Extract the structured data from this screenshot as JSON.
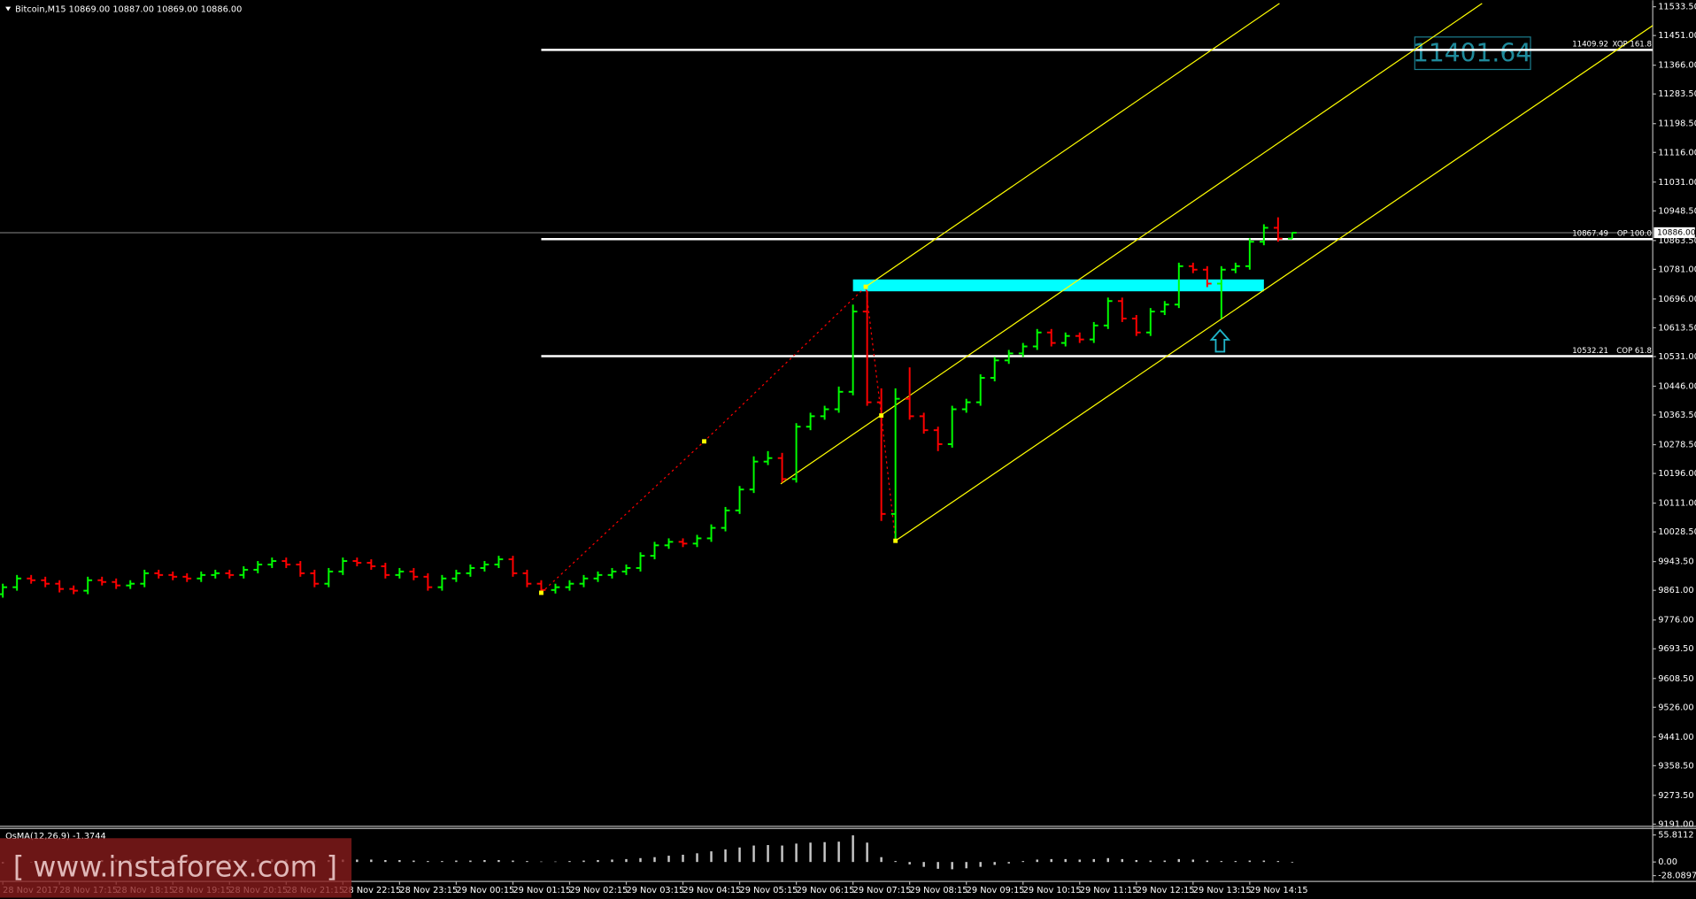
{
  "chart_data": {
    "type": "ohlc",
    "title": "Bitcoin,M15  10869.00 10887.00 10869.00 10886.00",
    "categories": [
      "28 Nov 2017",
      null,
      null,
      null,
      "28 Nov 17:15",
      null,
      null,
      null,
      "28 Nov 18:15",
      null,
      null,
      null,
      "28 Nov 19:15",
      null,
      null,
      null,
      "28 Nov 20:15",
      null,
      null,
      null,
      "28 Nov 21:15",
      null,
      null,
      null,
      "28 Nov 22:15",
      null,
      null,
      null,
      "28 Nov 23:15",
      null,
      null,
      null,
      "29 Nov 00:15",
      null,
      null,
      null,
      "29 Nov 01:15",
      null,
      null,
      null,
      "29 Nov 02:15",
      null,
      null,
      null,
      "29 Nov 03:15",
      null,
      null,
      null,
      "29 Nov 04:15",
      null,
      null,
      null,
      "29 Nov 05:15",
      null,
      null,
      null,
      "29 Nov 06:15",
      null,
      null,
      null,
      "29 Nov 07:15",
      null,
      null,
      null,
      "29 Nov 08:15",
      null,
      null,
      null,
      "29 Nov 09:15",
      null,
      null,
      null,
      "29 Nov 10:15",
      null,
      null,
      null,
      "29 Nov 11:15",
      null,
      null,
      null,
      "29 Nov 12:15",
      null,
      null,
      null,
      "29 Nov 13:15",
      null,
      null,
      null,
      "29 Nov 14:15",
      null,
      null,
      null
    ],
    "open": [
      9850,
      9870,
      9895,
      9890,
      9880,
      9865,
      9860,
      9890,
      9885,
      9875,
      9880,
      9910,
      9905,
      9900,
      9895,
      9905,
      9910,
      9905,
      9920,
      9935,
      9945,
      9935,
      9910,
      9880,
      9915,
      9945,
      9940,
      9930,
      9905,
      9915,
      9900,
      9870,
      9895,
      9910,
      9925,
      9935,
      9950,
      9910,
      9880,
      9862,
      9870,
      9880,
      9895,
      9905,
      9915,
      9925,
      9960,
      9990,
      10000,
      9995,
      10010,
      10040,
      10090,
      10150,
      10230,
      10240,
      10180,
      10330,
      10360,
      10380,
      10430,
      10660,
      10400,
      10080,
      10410,
      10360,
      10320,
      10280,
      10380,
      10400,
      10470,
      10520,
      10540,
      10560,
      10600,
      10570,
      10590,
      10580,
      10620,
      10690,
      10640,
      10600,
      10660,
      10680,
      10790,
      10780,
      10740,
      10780,
      10790,
      10860,
      10900,
      10869
    ],
    "high": [
      9880,
      9905,
      9905,
      9900,
      9890,
      9875,
      9900,
      9900,
      9895,
      9890,
      9920,
      9920,
      9915,
      9910,
      9915,
      9920,
      9920,
      9930,
      9945,
      9955,
      9955,
      9945,
      9920,
      9925,
      9955,
      9955,
      9950,
      9940,
      9925,
      9925,
      9910,
      9905,
      9920,
      9935,
      9945,
      9960,
      9960,
      9920,
      9890,
      9880,
      9890,
      9905,
      9915,
      9925,
      9935,
      9970,
      10000,
      10010,
      10010,
      10020,
      10050,
      10100,
      10160,
      10245,
      10260,
      10255,
      10340,
      10370,
      10390,
      10445,
      10680,
      10720,
      10440,
      10440,
      10500,
      10370,
      10330,
      10390,
      10410,
      10480,
      10530,
      10550,
      10570,
      10610,
      10610,
      10600,
      10600,
      10630,
      10700,
      10700,
      10650,
      10670,
      10690,
      10800,
      10800,
      10790,
      10790,
      10800,
      10870,
      10910,
      10930,
      10887
    ],
    "low": [
      9840,
      9860,
      9880,
      9870,
      9855,
      9850,
      9850,
      9875,
      9865,
      9865,
      9870,
      9895,
      9890,
      9885,
      9885,
      9895,
      9895,
      9895,
      9910,
      9925,
      9925,
      9900,
      9870,
      9870,
      9905,
      9930,
      9920,
      9895,
      9895,
      9890,
      9860,
      9860,
      9885,
      9900,
      9915,
      9925,
      9900,
      9870,
      9852,
      9852,
      9860,
      9870,
      9885,
      9895,
      9905,
      9915,
      9950,
      9980,
      9985,
      9985,
      10000,
      10030,
      10080,
      10140,
      10220,
      10170,
      10170,
      10320,
      10350,
      10370,
      10420,
      10390,
      10060,
      10003,
      10350,
      10310,
      10260,
      10270,
      10370,
      10390,
      10460,
      10510,
      10530,
      10550,
      10560,
      10560,
      10570,
      10570,
      10610,
      10630,
      10590,
      10590,
      10650,
      10670,
      10770,
      10730,
      10640,
      10770,
      10780,
      10850,
      10860,
      10869
    ],
    "close": [
      9870,
      9895,
      9890,
      9880,
      9865,
      9860,
      9890,
      9885,
      9875,
      9880,
      9910,
      9905,
      9900,
      9895,
      9905,
      9910,
      9905,
      9920,
      9935,
      9945,
      9935,
      9910,
      9880,
      9915,
      9945,
      9940,
      9930,
      9905,
      9915,
      9900,
      9870,
      9895,
      9910,
      9925,
      9935,
      9950,
      9910,
      9880,
      9862,
      9870,
      9880,
      9895,
      9905,
      9915,
      9925,
      9960,
      9990,
      10000,
      9995,
      10010,
      10040,
      10090,
      10150,
      10230,
      10240,
      10180,
      10330,
      10360,
      10380,
      10430,
      10660,
      10400,
      10080,
      10410,
      10360,
      10320,
      10280,
      10380,
      10400,
      10470,
      10520,
      10540,
      10560,
      10600,
      10570,
      10590,
      10580,
      10620,
      10690,
      10640,
      10600,
      10660,
      10680,
      10790,
      10780,
      10740,
      10780,
      10790,
      10860,
      10900,
      10869,
      10886
    ],
    "up_color": "#00ff00",
    "down_color": "#ff0000",
    "ylim": [
      9191,
      11533.5
    ],
    "yticks": [
      {
        "value": 11533.5,
        "label": "11533.50"
      },
      {
        "value": 11451,
        "label": "11451.00"
      },
      {
        "value": 11366,
        "label": "11366.00"
      },
      {
        "value": 11283.5,
        "label": "11283.50"
      },
      {
        "value": 11198.5,
        "label": "11198.50"
      },
      {
        "value": 11116,
        "label": "11116.00"
      },
      {
        "value": 11031,
        "label": "11031.00"
      },
      {
        "value": 10948.5,
        "label": "10948.50"
      },
      {
        "value": 10863.5,
        "label": "10863.50"
      },
      {
        "value": 10781,
        "label": "10781.00"
      },
      {
        "value": 10696,
        "label": "10696.00"
      },
      {
        "value": 10613.5,
        "label": "10613.50"
      },
      {
        "value": 10531,
        "label": "10531.00"
      },
      {
        "value": 10446,
        "label": "10446.00"
      },
      {
        "value": 10363.5,
        "label": "10363.50"
      },
      {
        "value": 10278.5,
        "label": "10278.50"
      },
      {
        "value": 10196,
        "label": "10196.00"
      },
      {
        "value": 10111,
        "label": "10111.00"
      },
      {
        "value": 10028.5,
        "label": "10028.50"
      },
      {
        "value": 9943.5,
        "label": "9943.50"
      },
      {
        "value": 9861,
        "label": "9861.00"
      },
      {
        "value": 9776,
        "label": "9776.00"
      },
      {
        "value": 9693.5,
        "label": "9693.50"
      },
      {
        "value": 9608.5,
        "label": "9608.50"
      },
      {
        "value": 9526,
        "label": "9526.00"
      },
      {
        "value": 9441,
        "label": "9441.00"
      },
      {
        "value": 9358.5,
        "label": "9358.50"
      },
      {
        "value": 9273.5,
        "label": "9273.50"
      },
      {
        "value": 9191,
        "label": "9191.00"
      }
    ],
    "current_price": {
      "value": 10886,
      "label": "10886.00"
    },
    "levels_from": 38,
    "levels": [
      {
        "value": 11409.92,
        "name": "XOP 161.8"
      },
      {
        "value": 10867.49,
        "name": "OP 100.0"
      },
      {
        "value": 10532.21,
        "name": "COP 61.8"
      }
    ],
    "zone": {
      "x": [
        60,
        89
      ],
      "y": [
        10718,
        10752
      ],
      "color": "#00ffff"
    },
    "channel_color": "#ffff00",
    "channel": [
      {
        "x": [
          60.9,
          90.1
        ],
        "y": [
          10731,
          11543
        ]
      },
      {
        "x": [
          54.9,
          104.4
        ],
        "y": [
          10166,
          11543
        ]
      },
      {
        "x": [
          63,
          116.6
        ],
        "y": [
          10003,
          11484
        ]
      }
    ],
    "pattern": {
      "x": [
        38,
        49.5,
        60.9,
        62,
        63
      ],
      "y": [
        9854,
        10288,
        10731,
        10362,
        10003
      ],
      "color": "#ff0000"
    },
    "target_label": "11401.64",
    "indicator": {
      "type": "histogram",
      "title": "OsMA(12,26,9) -1.3744",
      "color": "#c8c8c8",
      "values": [
        -3,
        -2,
        -1,
        0,
        1,
        2,
        3,
        4,
        5,
        5,
        6,
        6,
        5,
        5,
        4,
        4,
        5,
        5,
        6,
        6,
        5,
        4,
        3,
        4,
        5,
        5,
        5,
        4,
        4,
        3,
        2,
        2,
        3,
        3,
        4,
        4,
        3,
        2,
        1,
        1,
        2,
        3,
        4,
        5,
        6,
        8,
        10,
        13,
        15,
        18,
        22,
        26,
        30,
        34,
        35,
        34,
        38,
        40,
        41,
        42,
        55,
        40,
        10,
        2,
        -5,
        -10,
        -14,
        -15,
        -13,
        -10,
        -6,
        -3,
        2,
        5,
        6,
        6,
        5,
        6,
        8,
        6,
        4,
        3,
        3,
        6,
        5,
        3,
        2,
        2,
        3,
        3,
        2,
        -1.3744
      ],
      "ylim": [
        -28.0897,
        55.8112
      ],
      "yticks": [
        55.8112,
        {
          "value": 0,
          "label": "0.00"
        },
        -28.0897
      ]
    },
    "watermark": "[ www.instaforex.com ]"
  }
}
